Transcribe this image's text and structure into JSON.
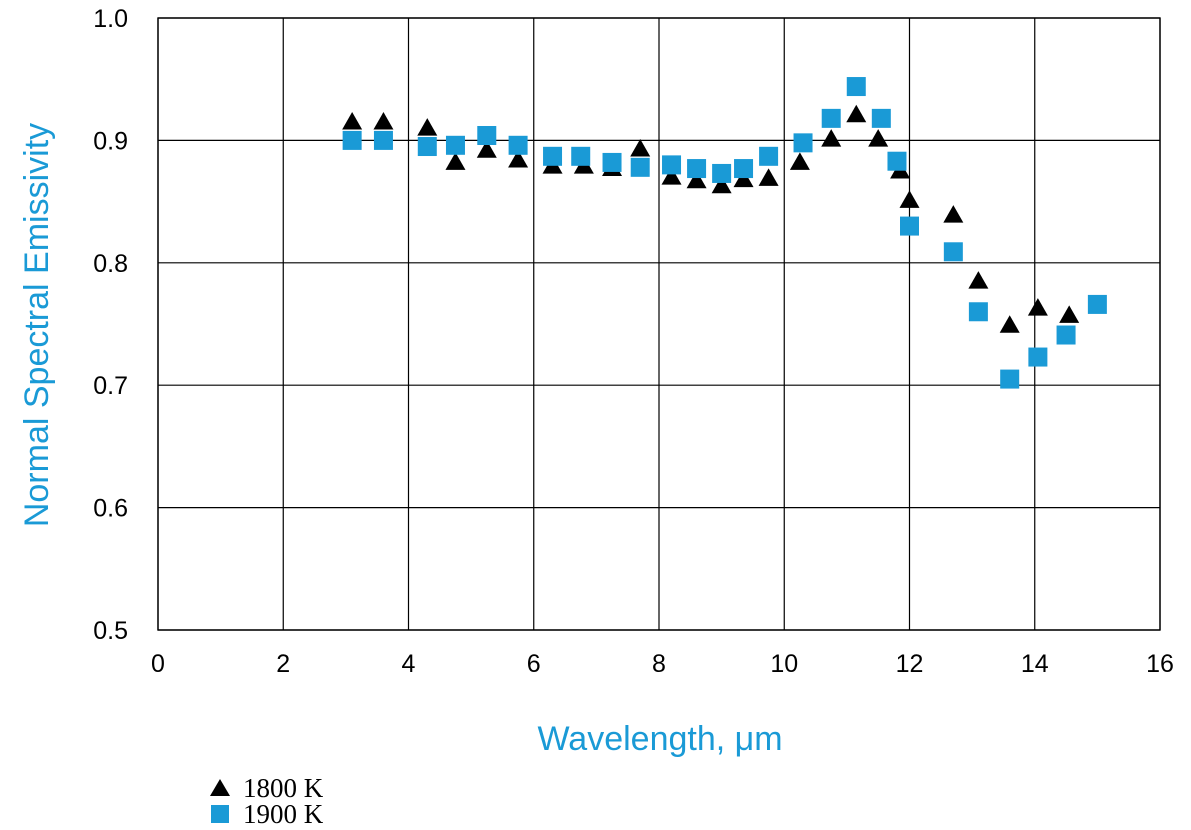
{
  "chart_data": {
    "type": "scatter",
    "xlabel": "Wavelength, μm",
    "ylabel": "Normal Spectral Emissivity",
    "xlim": [
      0,
      16
    ],
    "ylim": [
      0.5,
      1.0
    ],
    "x_ticks": [
      "0",
      "2",
      "4",
      "6",
      "8",
      "10",
      "12",
      "14",
      "16"
    ],
    "y_ticks": [
      "0.5",
      "0.6",
      "0.7",
      "0.8",
      "0.9",
      "1.0"
    ],
    "grid": true,
    "legend_position": "bottom-left, below chart",
    "series": [
      {
        "name": "1800 K",
        "marker": "triangle",
        "color": "#000000",
        "points": [
          [
            3.1,
            0.915
          ],
          [
            3.6,
            0.915
          ],
          [
            4.3,
            0.91
          ],
          [
            4.75,
            0.882
          ],
          [
            5.25,
            0.892
          ],
          [
            5.75,
            0.884
          ],
          [
            6.3,
            0.879
          ],
          [
            6.8,
            0.879
          ],
          [
            7.25,
            0.877
          ],
          [
            7.7,
            0.893
          ],
          [
            8.2,
            0.87
          ],
          [
            8.6,
            0.867
          ],
          [
            9.0,
            0.863
          ],
          [
            9.35,
            0.868
          ],
          [
            9.75,
            0.869
          ],
          [
            10.25,
            0.882
          ],
          [
            10.75,
            0.901
          ],
          [
            11.15,
            0.921
          ],
          [
            11.5,
            0.901
          ],
          [
            11.85,
            0.875
          ],
          [
            12.0,
            0.851
          ],
          [
            12.7,
            0.839
          ],
          [
            13.1,
            0.785
          ],
          [
            13.6,
            0.749
          ],
          [
            14.05,
            0.763
          ],
          [
            14.55,
            0.757
          ]
        ]
      },
      {
        "name": "1900 K",
        "marker": "square",
        "color": "#1a9ad6",
        "points": [
          [
            3.1,
            0.9
          ],
          [
            3.6,
            0.9
          ],
          [
            4.3,
            0.895
          ],
          [
            4.75,
            0.896
          ],
          [
            5.25,
            0.904
          ],
          [
            5.75,
            0.896
          ],
          [
            6.3,
            0.887
          ],
          [
            6.75,
            0.887
          ],
          [
            7.25,
            0.882
          ],
          [
            7.7,
            0.878
          ],
          [
            8.2,
            0.88
          ],
          [
            8.6,
            0.877
          ],
          [
            9.0,
            0.873
          ],
          [
            9.35,
            0.877
          ],
          [
            9.75,
            0.887
          ],
          [
            10.3,
            0.898
          ],
          [
            10.75,
            0.918
          ],
          [
            11.15,
            0.944
          ],
          [
            11.55,
            0.918
          ],
          [
            11.8,
            0.883
          ],
          [
            12.0,
            0.83
          ],
          [
            12.7,
            0.809
          ],
          [
            13.1,
            0.76
          ],
          [
            13.6,
            0.705
          ],
          [
            14.05,
            0.723
          ],
          [
            14.5,
            0.741
          ],
          [
            15.0,
            0.766
          ]
        ]
      }
    ]
  },
  "colors": {
    "axis_title": "#1a9ad6",
    "grid": "#000000",
    "triangle": "#000000",
    "square": "#1a9ad6"
  }
}
